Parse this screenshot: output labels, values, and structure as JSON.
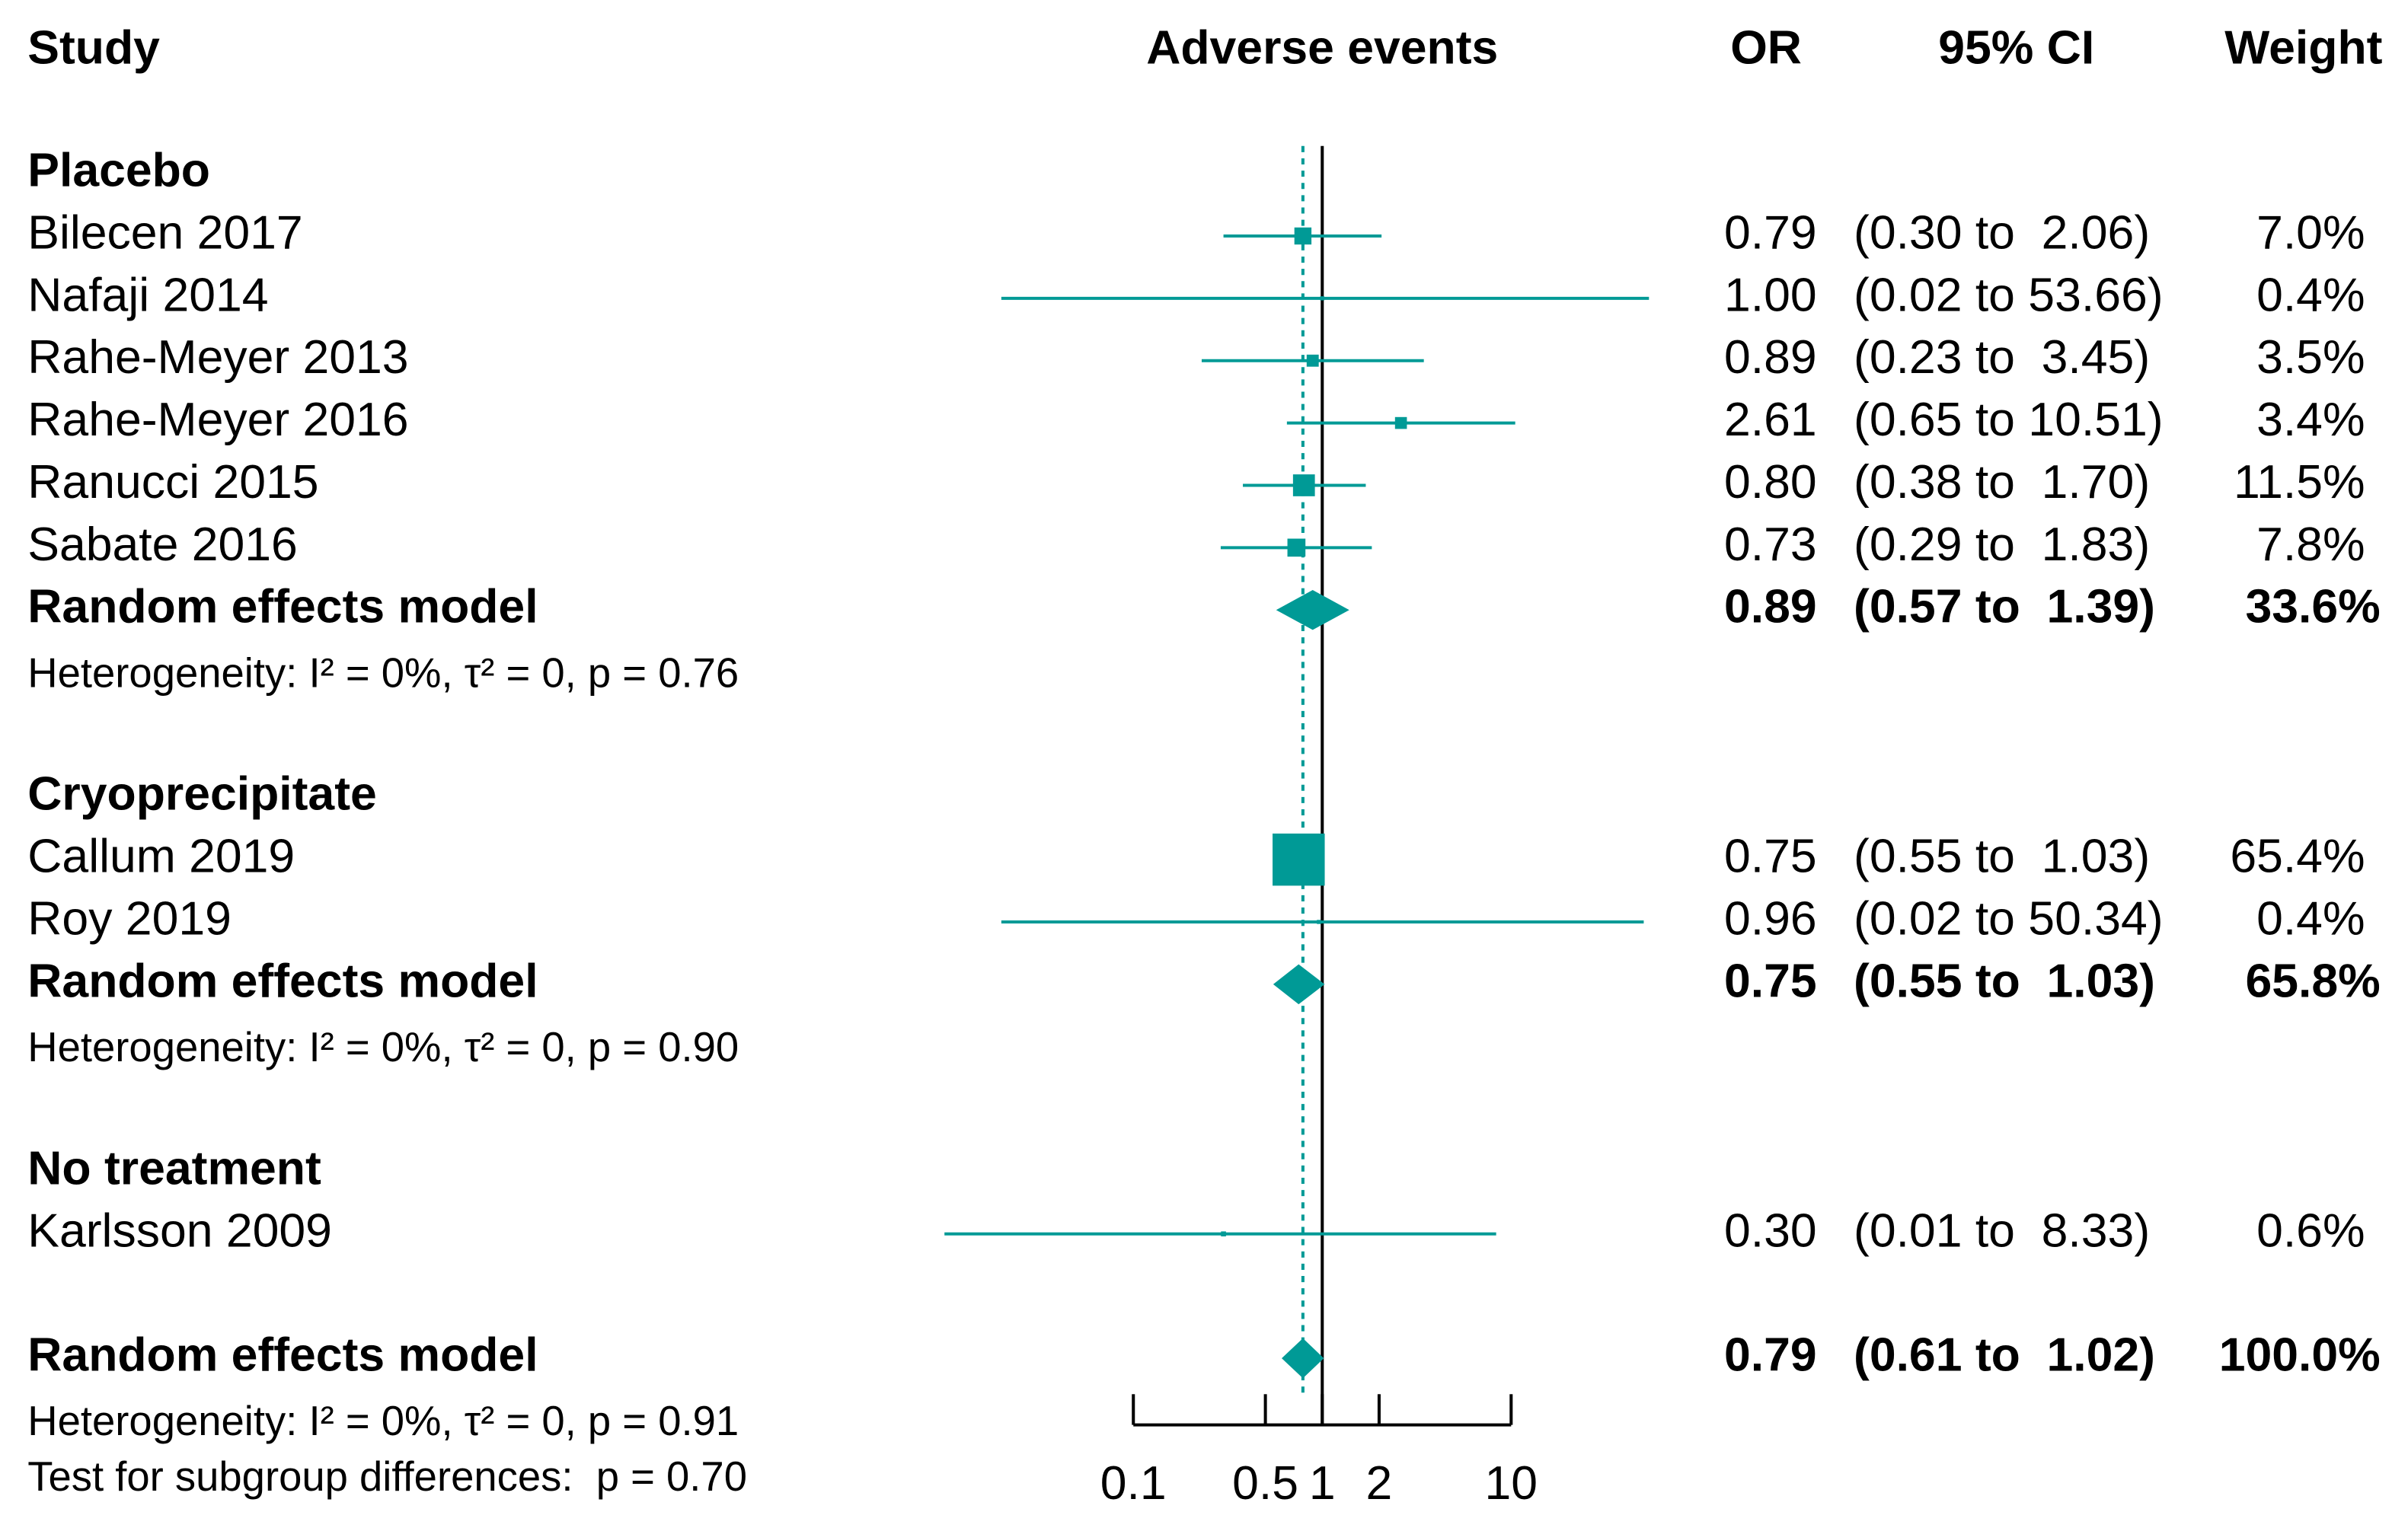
{
  "chart_data": {
    "type": "forest",
    "headers": {
      "study": "Study",
      "plot": "Adverse events",
      "or": "OR",
      "ci": "95% CI",
      "weight": "Weight"
    },
    "color": "#009a96",
    "log_x": true,
    "reference_line": 1,
    "xlim": [
      0.1,
      10
    ],
    "xticks": [
      0.1,
      0.5,
      1,
      2,
      10
    ],
    "groups": [
      {
        "name": "Placebo",
        "studies": [
          {
            "name": "Bilecen 2017",
            "or": 0.79,
            "ci_lower": 0.3,
            "ci_upper": 2.06,
            "weight": 7.0,
            "or_label": "0.79",
            "ci_label": "(0.30 to  2.06)",
            "weight_label": "7.0%"
          },
          {
            "name": "Nafaji 2014",
            "or": 1.0,
            "ci_lower": 0.02,
            "ci_upper": 53.66,
            "weight": 0.4,
            "or_label": "1.00",
            "ci_label": "(0.02 to 53.66)",
            "weight_label": "0.4%"
          },
          {
            "name": "Rahe-Meyer 2013",
            "or": 0.89,
            "ci_lower": 0.23,
            "ci_upper": 3.45,
            "weight": 3.5,
            "or_label": "0.89",
            "ci_label": "(0.23 to  3.45)",
            "weight_label": "3.5%"
          },
          {
            "name": "Rahe-Meyer 2016",
            "or": 2.61,
            "ci_lower": 0.65,
            "ci_upper": 10.51,
            "weight": 3.4,
            "or_label": "2.61",
            "ci_label": "(0.65 to 10.51)",
            "weight_label": "3.4%"
          },
          {
            "name": "Ranucci 2015",
            "or": 0.8,
            "ci_lower": 0.38,
            "ci_upper": 1.7,
            "weight": 11.5,
            "or_label": "0.80",
            "ci_label": "(0.38 to  1.70)",
            "weight_label": "11.5%"
          },
          {
            "name": "Sabate 2016",
            "or": 0.73,
            "ci_lower": 0.29,
            "ci_upper": 1.83,
            "weight": 7.8,
            "or_label": "0.73",
            "ci_label": "(0.29 to  1.83)",
            "weight_label": "7.8%"
          }
        ],
        "model": {
          "name": "Random effects model",
          "or": 0.89,
          "ci_lower": 0.57,
          "ci_upper": 1.39,
          "weight": 33.6,
          "or_label": "0.89",
          "ci_label": "(0.57 to  1.39)",
          "weight_label": "33.6%"
        },
        "heterogeneity": "Heterogeneity: I² = 0%, τ² = 0, p = 0.76"
      },
      {
        "name": "Cryoprecipitate",
        "studies": [
          {
            "name": "Callum 2019",
            "or": 0.75,
            "ci_lower": 0.55,
            "ci_upper": 1.03,
            "weight": 65.4,
            "or_label": "0.75",
            "ci_label": "(0.55 to  1.03)",
            "weight_label": "65.4%"
          },
          {
            "name": "Roy 2019",
            "or": 0.96,
            "ci_lower": 0.02,
            "ci_upper": 50.34,
            "weight": 0.4,
            "or_label": "0.96",
            "ci_label": "(0.02 to 50.34)",
            "weight_label": "0.4%"
          }
        ],
        "model": {
          "name": "Random effects model",
          "or": 0.75,
          "ci_lower": 0.55,
          "ci_upper": 1.03,
          "weight": 65.8,
          "or_label": "0.75",
          "ci_label": "(0.55 to  1.03)",
          "weight_label": "65.8%"
        },
        "heterogeneity": "Heterogeneity: I² = 0%, τ² = 0, p = 0.90"
      },
      {
        "name": "No treatment",
        "studies": [
          {
            "name": "Karlsson 2009",
            "or": 0.3,
            "ci_lower": 0.01,
            "ci_upper": 8.33,
            "weight": 0.6,
            "or_label": "0.30",
            "ci_label": "(0.01 to  8.33)",
            "weight_label": "0.6%"
          }
        ]
      }
    ],
    "overall": {
      "name": "Random effects model",
      "or": 0.79,
      "ci_lower": 0.61,
      "ci_upper": 1.02,
      "weight": 100.0,
      "or_label": "0.79",
      "ci_label": "(0.61 to  1.02)",
      "weight_label": "100.0%"
    },
    "heterogeneity": "Heterogeneity: I² = 0%, τ² = 0, p = 0.91",
    "subgroup_test": "Test for subgroup differences:  p = 0.70"
  }
}
